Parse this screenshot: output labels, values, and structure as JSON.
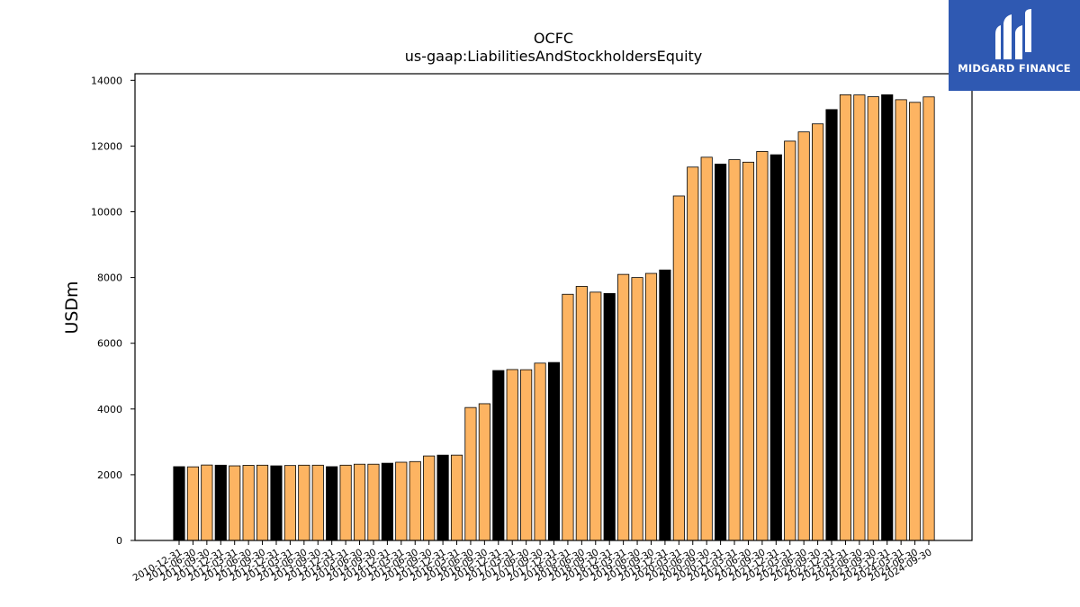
{
  "brand": {
    "name": "MIDGARD FINANCE",
    "bg_color": "#2f59b2"
  },
  "colors": {
    "accent_bar": "#fdb462",
    "highlight_bar": "#000000",
    "bar_edge": "#000000"
  },
  "chart_data": {
    "type": "bar",
    "title": "OCFC",
    "subtitle": "us-gaap:LiabilitiesAndStockholdersEquity",
    "xlabel": "",
    "ylabel": "USDm",
    "ylim": [
      0,
      14200
    ],
    "yticks": [
      0,
      2000,
      4000,
      6000,
      8000,
      10000,
      12000,
      14000
    ],
    "grid": false,
    "categories": [
      "2010-12-31",
      "2011-06-30",
      "2011-09-30",
      "2011-12-31",
      "2012-03-31",
      "2012-06-30",
      "2012-09-30",
      "2012-12-31",
      "2013-03-31",
      "2013-06-30",
      "2013-09-30",
      "2013-12-31",
      "2014-03-31",
      "2014-06-30",
      "2014-09-30",
      "2014-12-31",
      "2015-03-31",
      "2015-06-30",
      "2015-09-30",
      "2015-12-31",
      "2016-03-31",
      "2016-06-30",
      "2016-09-30",
      "2016-12-31",
      "2017-03-31",
      "2017-06-30",
      "2017-09-30",
      "2017-12-31",
      "2018-03-31",
      "2018-06-30",
      "2018-09-30",
      "2018-12-31",
      "2019-03-31",
      "2019-06-30",
      "2019-09-30",
      "2019-12-31",
      "2020-03-31",
      "2020-06-30",
      "2020-09-30",
      "2020-12-31",
      "2021-03-31",
      "2021-06-30",
      "2021-09-30",
      "2021-12-31",
      "2022-03-31",
      "2022-06-30",
      "2022-09-30",
      "2022-12-31",
      "2023-03-31",
      "2023-06-30",
      "2023-09-30",
      "2023-12-31",
      "2024-03-31",
      "2024-06-30",
      "2024-09-30"
    ],
    "values": [
      2245,
      2240,
      2295,
      2290,
      2270,
      2285,
      2290,
      2270,
      2280,
      2290,
      2290,
      2245,
      2290,
      2320,
      2320,
      2350,
      2380,
      2400,
      2570,
      2595,
      2595,
      4045,
      4160,
      5170,
      5200,
      5195,
      5395,
      5415,
      7490,
      7730,
      7555,
      7515,
      8095,
      8000,
      8125,
      8230,
      10480,
      11360,
      11660,
      11450,
      11585,
      11510,
      11835,
      11735,
      12150,
      12430,
      12675,
      13110,
      13560,
      13555,
      13500,
      13560,
      13410,
      13330,
      13495
    ],
    "highlight": [
      true,
      false,
      false,
      true,
      false,
      false,
      false,
      true,
      false,
      false,
      false,
      true,
      false,
      false,
      false,
      true,
      false,
      false,
      false,
      true,
      false,
      false,
      false,
      true,
      false,
      false,
      false,
      true,
      false,
      false,
      false,
      true,
      false,
      false,
      false,
      true,
      false,
      false,
      false,
      true,
      false,
      false,
      false,
      true,
      false,
      false,
      false,
      true,
      false,
      false,
      false,
      true,
      false,
      false,
      false
    ]
  }
}
